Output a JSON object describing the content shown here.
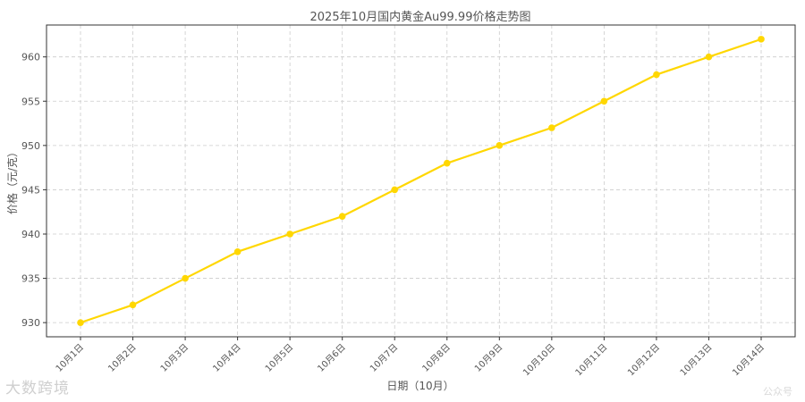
{
  "chart_data": {
    "type": "line",
    "title": "2025年10月国内黄金Au99.99价格走势图",
    "xlabel": "日期（10月）",
    "ylabel": "价格（元/克）",
    "categories": [
      "10月1日",
      "10月2日",
      "10月3日",
      "10月4日",
      "10月5日",
      "10月6日",
      "10月7日",
      "10月8日",
      "10月9日",
      "10月10日",
      "10月11日",
      "10月12日",
      "10月13日",
      "10月14日"
    ],
    "series": [
      {
        "values": [
          930,
          932,
          935,
          938,
          940,
          942,
          945,
          948,
          950,
          952,
          955,
          958,
          960,
          962
        ]
      }
    ],
    "ylim": [
      928.4,
      963.6
    ],
    "yticks": [
      930,
      935,
      940,
      945,
      950,
      955,
      960
    ],
    "grid": true,
    "line_color": "#FFD700"
  },
  "watermark": {
    "left": "大数跨境",
    "right": "公众号"
  }
}
